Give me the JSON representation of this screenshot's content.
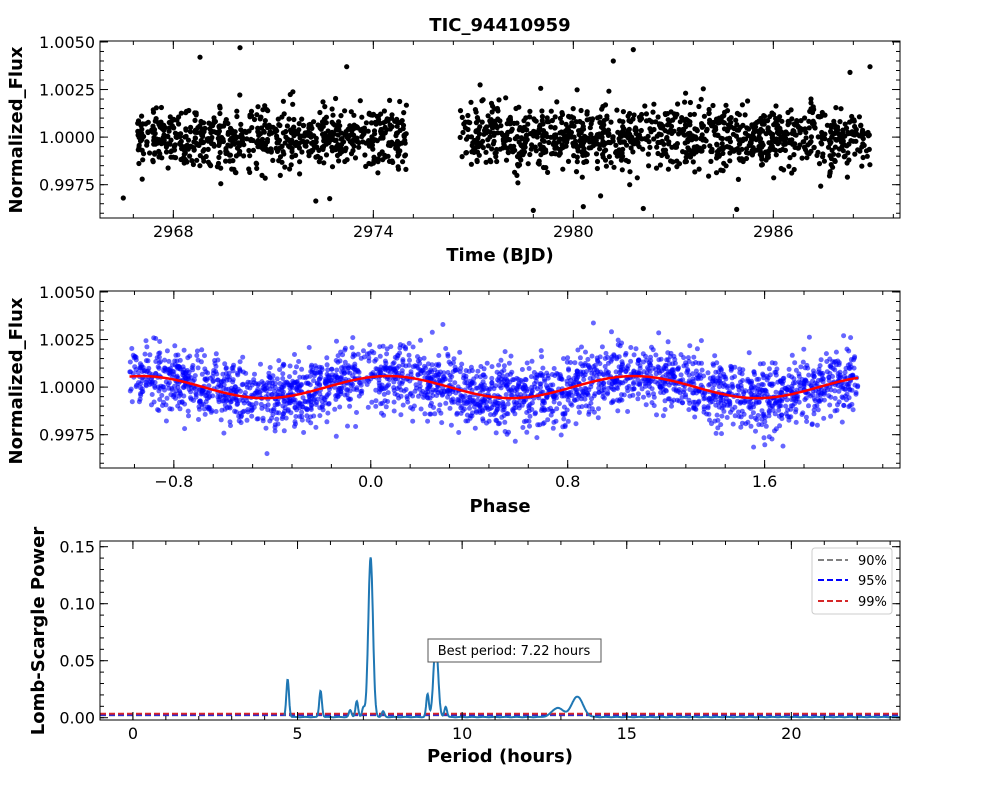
{
  "title": "TIC_94410959",
  "colors": {
    "lc_points": "#000000",
    "phase_points": "#0000ff",
    "phase_model": "#ff0000",
    "periodogram": "#1f77b4",
    "thr90": "#808080",
    "thr95": "#0000ff",
    "thr99": "#d62728"
  },
  "chart_data": [
    {
      "type": "scatter",
      "title": "TIC_94410959",
      "xlabel": "Time (BJD)",
      "ylabel": "Normalized_Flux",
      "xlim": [
        2965.8,
        2989.8
      ],
      "ylim": [
        0.99575,
        1.00505
      ],
      "xticks": [
        2968,
        2974,
        2980,
        2986
      ],
      "xtick_labels": [
        "2968",
        "2974",
        "2980",
        "2986"
      ],
      "yticks": [
        0.9975,
        1.0,
        1.0025,
        1.005
      ],
      "ytick_labels": [
        "0.9975",
        "1.0000",
        "1.0025",
        "1.0050"
      ],
      "segments": [
        [
          2966.9,
          2975.0
        ],
        [
          2976.6,
          2988.9
        ]
      ],
      "flux_center": 1.0,
      "flux_scatter": 0.0008,
      "outliers": [
        {
          "x": 2968.8,
          "y": 1.0042
        },
        {
          "x": 2966.5,
          "y": 0.9968
        },
        {
          "x": 2970.0,
          "y": 1.0047
        },
        {
          "x": 2973.2,
          "y": 1.0037
        },
        {
          "x": 2978.8,
          "y": 0.99615
        },
        {
          "x": 2981.2,
          "y": 1.004
        },
        {
          "x": 2981.8,
          "y": 1.0046
        },
        {
          "x": 2980.3,
          "y": 0.99635
        },
        {
          "x": 2982.1,
          "y": 0.99625
        },
        {
          "x": 2984.9,
          "y": 0.9962
        },
        {
          "x": 2988.3,
          "y": 1.0034
        },
        {
          "x": 2988.9,
          "y": 1.0037
        }
      ]
    },
    {
      "type": "scatter",
      "xlabel": "Phase",
      "ylabel": "Normalized_Flux",
      "xlim": [
        -1.1,
        2.15
      ],
      "ylim": [
        0.99575,
        1.00505
      ],
      "xticks": [
        -0.8,
        0.0,
        0.8,
        1.6
      ],
      "xtick_labels": [
        "−0.8",
        "0.0",
        "0.8",
        "1.6"
      ],
      "yticks": [
        0.9975,
        1.0,
        1.0025,
        1.005
      ],
      "ytick_labels": [
        "0.9975",
        "1.0000",
        "1.0025",
        "1.0050"
      ],
      "phase_range": [
        -0.98,
        1.98
      ],
      "model": {
        "type": "sinusoid",
        "amplitude": 0.00058,
        "period_in_phase": 1.0,
        "peak_phase": 0.07,
        "center": 1.0
      }
    },
    {
      "type": "line",
      "xlabel": "Period (hours)",
      "ylabel": "Lomb-Scargle Power",
      "xlim": [
        -1.0,
        23.3
      ],
      "ylim": [
        -0.002,
        0.155
      ],
      "xticks": [
        0,
        5,
        10,
        15,
        20
      ],
      "xtick_labels": [
        "0",
        "5",
        "10",
        "15",
        "20"
      ],
      "yticks": [
        0.0,
        0.05,
        0.1,
        0.15
      ],
      "ytick_labels": [
        "0.00",
        "0.05",
        "0.10",
        "0.15"
      ],
      "period_range": [
        4.6,
        23.3
      ],
      "peaks": [
        {
          "period": 4.7,
          "power": 0.033
        },
        {
          "period": 5.7,
          "power": 0.023
        },
        {
          "period": 6.6,
          "power": 0.006
        },
        {
          "period": 6.8,
          "power": 0.014
        },
        {
          "period": 7.0,
          "power": 0.008
        },
        {
          "period": 7.22,
          "power": 0.14
        },
        {
          "period": 7.6,
          "power": 0.005
        },
        {
          "period": 8.95,
          "power": 0.02
        },
        {
          "period": 9.2,
          "power": 0.066
        },
        {
          "period": 9.5,
          "power": 0.009
        },
        {
          "period": 12.9,
          "power": 0.008
        },
        {
          "period": 13.5,
          "power": 0.018
        }
      ],
      "thresholds": [
        {
          "label": "90%",
          "value": 0.0022
        },
        {
          "label": "95%",
          "value": 0.0027
        },
        {
          "label": "99%",
          "value": 0.0034
        }
      ],
      "annotation": "Best period: 7.22 hours",
      "legend_position": "top-right"
    }
  ]
}
